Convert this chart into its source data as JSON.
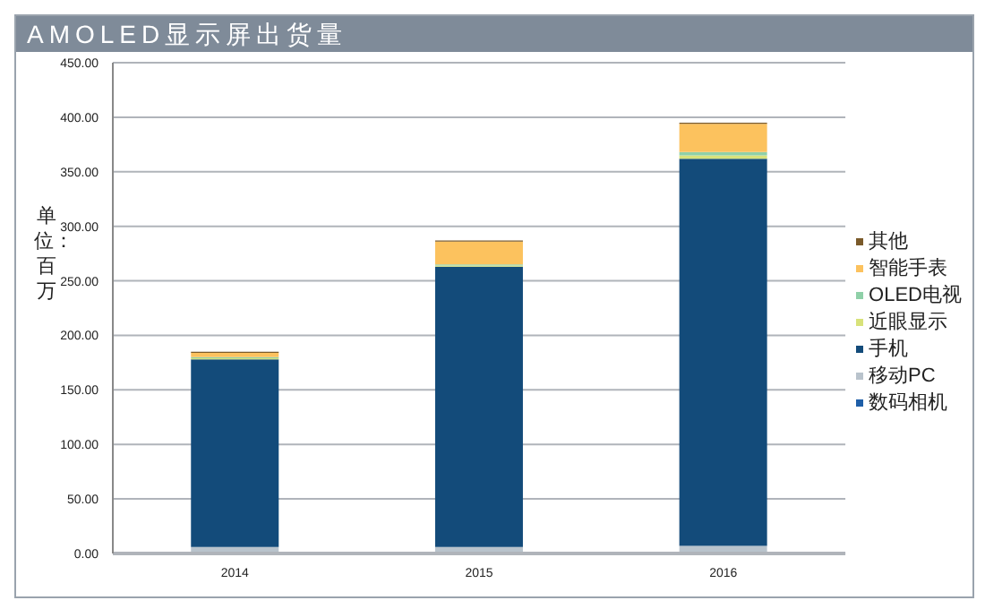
{
  "chart_data": {
    "type": "bar",
    "title": "AMOLED显示屏出货量",
    "ylabel": "单位：百万",
    "stacked": true,
    "categories": [
      "2014",
      "2015",
      "2016"
    ],
    "series": [
      {
        "name": "数码相机",
        "color": "#1f5fa8",
        "values": [
          1,
          1,
          null
        ]
      },
      {
        "name": "移动PC",
        "color": "#b9c3cc",
        "values": [
          5,
          5,
          7
        ]
      },
      {
        "name": "手机",
        "color": "#134b7a",
        "values": [
          172,
          257,
          355
        ]
      },
      {
        "name": "近眼显示",
        "color": "#d8e27a",
        "values": [
          1,
          1,
          3
        ]
      },
      {
        "name": "OLED电视",
        "color": "#8fd0a8",
        "values": [
          1,
          1,
          3
        ]
      },
      {
        "name": "智能手表",
        "color": "#fcc25e",
        "values": [
          4,
          21,
          26
        ]
      },
      {
        "name": "其他",
        "color": "#7a5a2a",
        "values": [
          1,
          1,
          1
        ]
      }
    ],
    "ylim": [
      0,
      450
    ],
    "yticks": [
      {
        "value": 0,
        "label": "0.00"
      },
      {
        "value": 50,
        "label": "50.00"
      },
      {
        "value": 100,
        "label": "100.00"
      },
      {
        "value": 150,
        "label": "150.00"
      },
      {
        "value": 200,
        "label": "200.00"
      },
      {
        "value": 250,
        "label": "250.00"
      },
      {
        "value": 300,
        "label": "300.00"
      },
      {
        "value": 350,
        "label": "350.00"
      },
      {
        "value": 400,
        "label": "400.00"
      },
      {
        "value": 450,
        "label": "450.00"
      }
    ],
    "grid": "y",
    "legend": "right"
  }
}
